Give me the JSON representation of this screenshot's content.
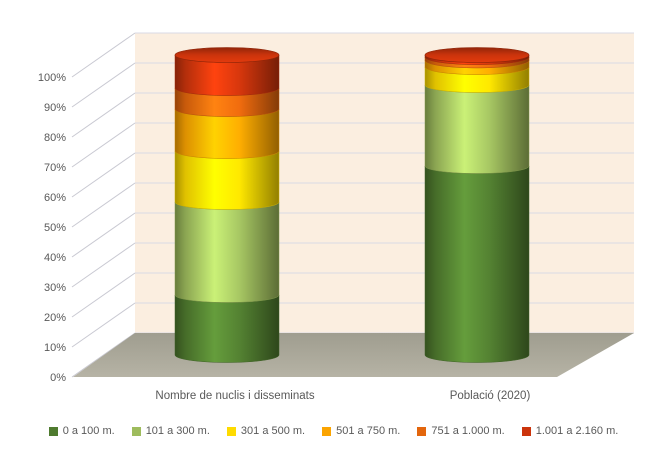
{
  "chart_data": {
    "type": "bar",
    "subtype": "3d-cylinder-stacked",
    "stacking": "percent",
    "title": "",
    "xlabel": "",
    "ylabel": "",
    "categories": [
      "Nombre de nuclis i disseminats",
      "Població (2020)"
    ],
    "series": [
      {
        "name": "0 a 100 m.",
        "color": "#4f7b2f",
        "values": [
          20,
          63
        ]
      },
      {
        "name": "101 a 300 m.",
        "color": "#9ebc5d",
        "values": [
          31,
          27
        ]
      },
      {
        "name": "301 a 500 m.",
        "color": "#fedb00",
        "values": [
          17,
          6
        ]
      },
      {
        "name": "501 a 750 m.",
        "color": "#fba401",
        "values": [
          14,
          2.2
        ]
      },
      {
        "name": "751 a 1.000 m.",
        "color": "#e3660d",
        "values": [
          7,
          1.1
        ]
      },
      {
        "name": "1.001 a 2.160 m.",
        "color": "#cb340c",
        "values": [
          11,
          0.7
        ]
      }
    ],
    "ylim": [
      0,
      100
    ],
    "y_unit": "%",
    "y_ticks": [
      "0%",
      "10%",
      "20%",
      "30%",
      "40%",
      "50%",
      "60%",
      "70%",
      "80%",
      "90%",
      "100%"
    ],
    "gridlines": true,
    "legend_position": "bottom",
    "palette": {
      "wall": "#fbeee0",
      "floor_back": "#9f9d8f",
      "floor_front": "#b6b3a5",
      "gridline": "#d9d9e4",
      "tick_line": "#c9c9d2",
      "text": "#595959"
    }
  }
}
